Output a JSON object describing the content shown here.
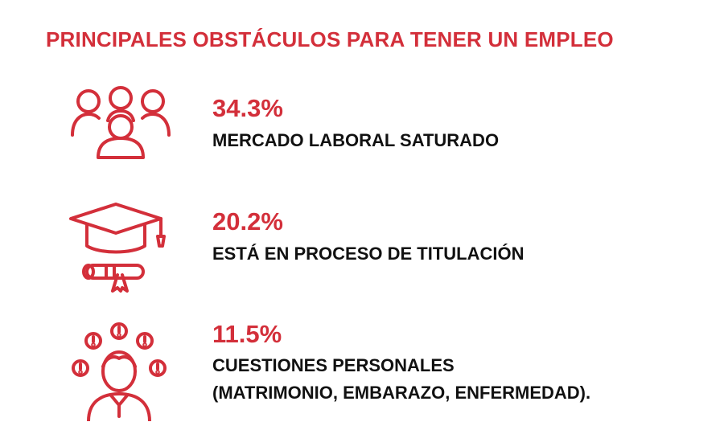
{
  "title": "PRINCIPALES OBSTÁCULOS PARA TENER UN EMPLEO",
  "accent_color": "#d32f3a",
  "text_color": "#111111",
  "items": [
    {
      "percentage": "34.3%",
      "value": 34.3,
      "label_lines": [
        "MERCADO LABORAL SATURADO"
      ],
      "icon": "people-group-icon"
    },
    {
      "percentage": "20.2%",
      "value": 20.2,
      "label_lines": [
        "ESTÁ  EN  PROCESO  DE  TITULACIÓN"
      ],
      "icon": "graduation-cap-diploma-icon"
    },
    {
      "percentage": "11.5%",
      "value": 11.5,
      "label_lines": [
        "CUESTIONES  PERSONALES",
        "(MATRIMONIO, EMBARAZO, ENFERMEDAD)."
      ],
      "icon": "person-exclamation-icon"
    }
  ]
}
